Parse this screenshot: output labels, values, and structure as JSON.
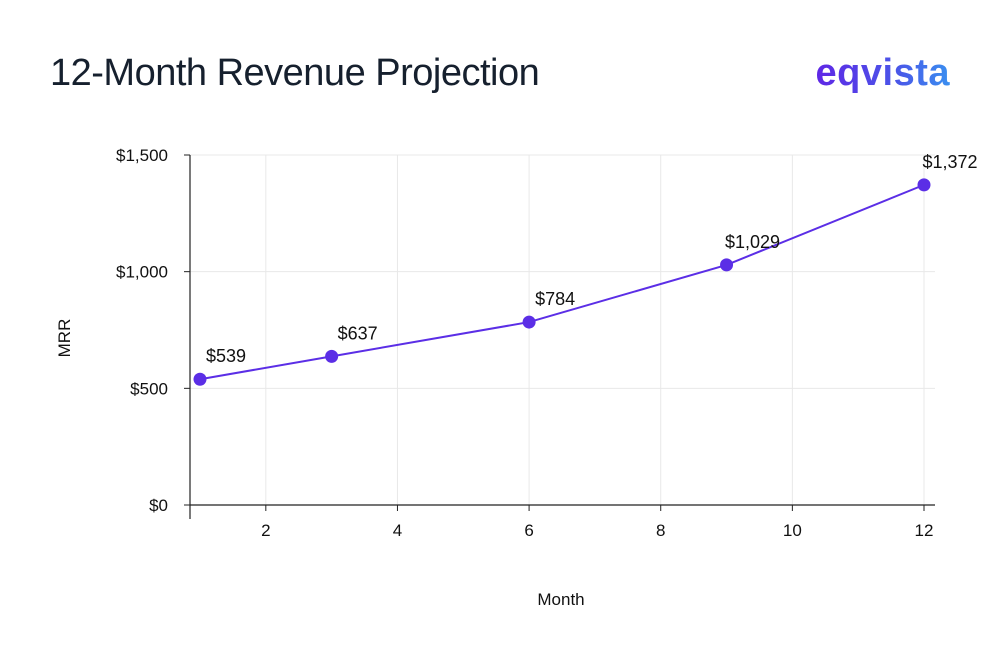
{
  "header": {
    "title": "12-Month Revenue Projection",
    "logo": "eqvista"
  },
  "colors": {
    "series": "#5b2ee6",
    "grid": "#e8e8e8",
    "axis": "#222222"
  },
  "chart_data": {
    "type": "line",
    "title": "12-Month Revenue Projection",
    "xlabel": "Month",
    "ylabel": "MRR",
    "xlim": [
      1,
      12
    ],
    "ylim": [
      0,
      1500
    ],
    "xticks": [
      2,
      4,
      6,
      8,
      10,
      12
    ],
    "xtick_labels": [
      "2",
      "4",
      "6",
      "8",
      "10",
      "12"
    ],
    "yticks": [
      0,
      500,
      1000,
      1500
    ],
    "ytick_labels": [
      "$0",
      "$500",
      "$1,000",
      "$1,500"
    ],
    "grid": true,
    "legend": "none",
    "series": [
      {
        "x": [
          1,
          3,
          6,
          9,
          12
        ],
        "y": [
          539,
          637,
          784,
          1029,
          1372
        ],
        "labels": [
          "$539",
          "$637",
          "$784",
          "$1,029",
          "$1,372"
        ]
      }
    ]
  }
}
